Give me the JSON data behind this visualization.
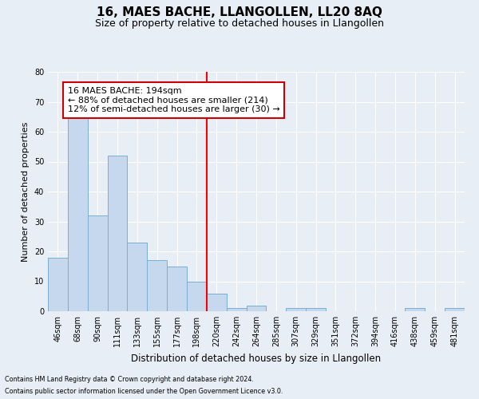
{
  "title": "16, MAES BACHE, LLANGOLLEN, LL20 8AQ",
  "subtitle": "Size of property relative to detached houses in Llangollen",
  "xlabel": "Distribution of detached houses by size in Llangollen",
  "ylabel": "Number of detached properties",
  "categories": [
    "46sqm",
    "68sqm",
    "90sqm",
    "111sqm",
    "133sqm",
    "155sqm",
    "177sqm",
    "198sqm",
    "220sqm",
    "242sqm",
    "264sqm",
    "285sqm",
    "307sqm",
    "329sqm",
    "351sqm",
    "372sqm",
    "394sqm",
    "416sqm",
    "438sqm",
    "459sqm",
    "481sqm"
  ],
  "values": [
    18,
    65,
    32,
    52,
    23,
    17,
    15,
    10,
    6,
    1,
    2,
    0,
    1,
    1,
    0,
    0,
    0,
    0,
    1,
    0,
    1
  ],
  "bar_color": "#c5d8ed",
  "bar_edge_color": "#7aaed0",
  "red_line_index": 7,
  "ylim": [
    0,
    80
  ],
  "yticks": [
    0,
    10,
    20,
    30,
    40,
    50,
    60,
    70,
    80
  ],
  "annotation_text": "16 MAES BACHE: 194sqm\n← 88% of detached houses are smaller (214)\n12% of semi-detached houses are larger (30) →",
  "annotation_box_color": "#ffffff",
  "annotation_box_edge_color": "#cc0000",
  "footer1": "Contains HM Land Registry data © Crown copyright and database right 2024.",
  "footer2": "Contains public sector information licensed under the Open Government Licence v3.0.",
  "background_color": "#e8eef5",
  "grid_color": "#ffffff",
  "title_fontsize": 11,
  "subtitle_fontsize": 9,
  "tick_fontsize": 7,
  "ylabel_fontsize": 8,
  "xlabel_fontsize": 8.5,
  "annotation_fontsize": 8,
  "footer_fontsize": 5.8
}
